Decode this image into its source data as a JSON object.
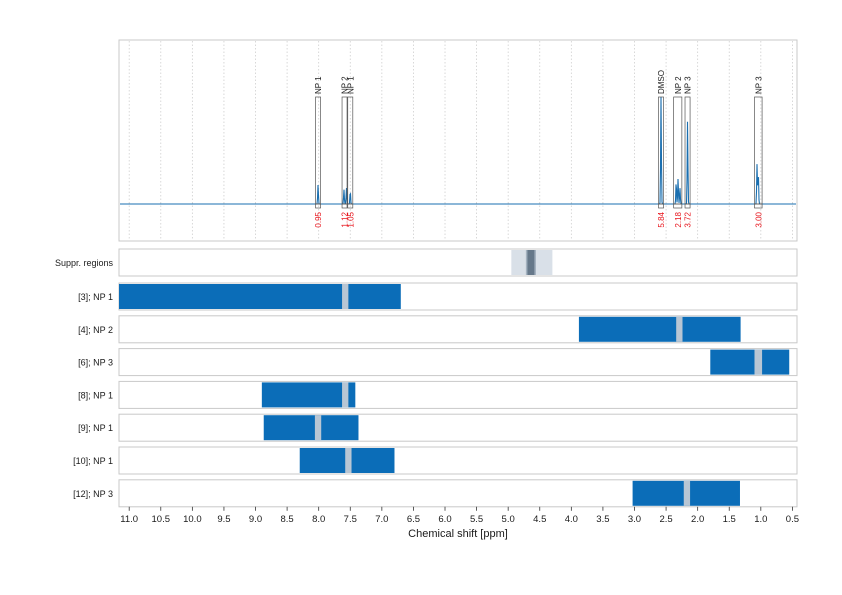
{
  "chart_data": {
    "type": "nmr-spectrum-with-region-bars",
    "xlabel": "Chemical shift [ppm]",
    "xlim": [
      11.2,
      0.5
    ],
    "x_ticks": [
      "11.0",
      "10.5",
      "10.0",
      "9.5",
      "9.0",
      "8.5",
      "8.0",
      "7.5",
      "7.0",
      "6.5",
      "6.0",
      "5.5",
      "5.0",
      "4.5",
      "4.0",
      "3.5",
      "3.0",
      "2.5",
      "2.0",
      "1.5",
      "1.0",
      "0.5"
    ],
    "grid": true,
    "spectrum": {
      "color": "#1a6fb0",
      "peaks": [
        {
          "ppm": 8.01,
          "height": 0.12
        },
        {
          "ppm": 7.6,
          "height": 0.09
        },
        {
          "ppm": 7.56,
          "height": 0.1
        },
        {
          "ppm": 7.5,
          "height": 0.08
        },
        {
          "ppm": 2.58,
          "height": 0.67
        },
        {
          "ppm": 2.34,
          "height": 0.14
        },
        {
          "ppm": 2.31,
          "height": 0.16
        },
        {
          "ppm": 2.28,
          "height": 0.1
        },
        {
          "ppm": 2.16,
          "height": 0.52
        },
        {
          "ppm": 1.06,
          "height": 0.25
        },
        {
          "ppm": 1.04,
          "height": 0.2
        }
      ]
    },
    "peak_annotations": [
      {
        "label": "NP 1",
        "from": 8.05,
        "to": 7.97,
        "integral": "0.95"
      },
      {
        "label": "NP 2",
        "from": 7.63,
        "to": 7.56,
        "integral": "1.12"
      },
      {
        "label": "NP 1",
        "from": 7.54,
        "to": 7.46,
        "integral": "1.05"
      },
      {
        "label": "DMSO",
        "from": 2.62,
        "to": 2.54,
        "integral": "5.84"
      },
      {
        "label": "NP 2",
        "from": 2.38,
        "to": 2.25,
        "integral": "2.18"
      },
      {
        "label": "NP 3",
        "from": 2.2,
        "to": 2.12,
        "integral": "3.72"
      },
      {
        "label": "NP 3",
        "from": 1.1,
        "to": 0.98,
        "integral": "3.00"
      }
    ],
    "suppression_regions": {
      "label": "Suppr. regions",
      "outer": [
        4.95,
        4.3
      ],
      "inner": [
        4.72,
        4.56
      ]
    },
    "rows": [
      {
        "label": "[3]; NP 1",
        "from": 11.2,
        "to": 6.7,
        "gap": [
          7.63,
          7.53
        ]
      },
      {
        "label": "[4]; NP 2",
        "from": 3.88,
        "to": 1.32,
        "gap": [
          2.34,
          2.24
        ]
      },
      {
        "label": "[6]; NP 3",
        "from": 1.8,
        "to": 0.55,
        "gap": [
          1.1,
          0.98
        ]
      },
      {
        "label": "[8]; NP 1",
        "from": 8.9,
        "to": 7.42,
        "gap": [
          7.63,
          7.53
        ]
      },
      {
        "label": "[9]; NP 1",
        "from": 8.87,
        "to": 7.37,
        "gap": [
          8.06,
          7.96
        ]
      },
      {
        "label": "[10]; NP 1",
        "from": 8.3,
        "to": 6.8,
        "gap": [
          7.58,
          7.48
        ]
      },
      {
        "label": "[12]; NP 3",
        "from": 3.03,
        "to": 1.33,
        "gap": [
          2.22,
          2.12
        ]
      }
    ],
    "bar_color": "#0b6db8",
    "gap_color": "#b8c6d4"
  }
}
